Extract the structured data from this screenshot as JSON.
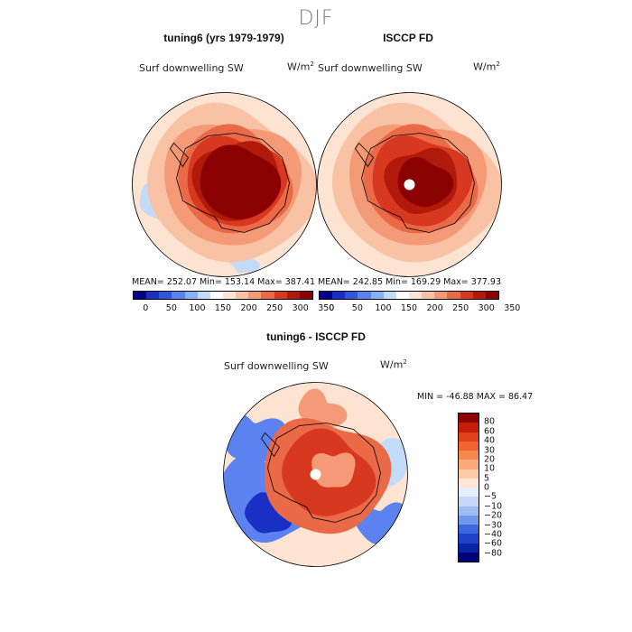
{
  "season_title": "DJF",
  "panels": [
    {
      "title": "tuning6 (yrs 1979-1979)",
      "variable": "Surf downwelling SW",
      "units_base": "W/m",
      "units_exp": "2",
      "stats": "MEAN= 252.07   Min= 153.14   Max= 387.41",
      "colorbar_ticks": [
        "0",
        "50",
        "100",
        "150",
        "200",
        "250",
        "300",
        "350"
      ],
      "colorbar_colors": [
        "#00008b",
        "#1a2fc4",
        "#3355dd",
        "#5b82ee",
        "#8ab0f6",
        "#c2dbf9",
        "#ffffff",
        "#fde3d2",
        "#f9c2a4",
        "#f59a76",
        "#ea6a48",
        "#d8381f",
        "#b11a0b",
        "#8b0000"
      ],
      "mean": 252.07,
      "min": 153.14,
      "max": 387.41
    },
    {
      "title": "ISCCP FD",
      "variable": "Surf downwelling SW",
      "units_base": "W/m",
      "units_exp": "2",
      "stats": "MEAN= 242.85   Min= 169.29   Max= 377.93",
      "colorbar_ticks": [
        "0",
        "50",
        "100",
        "150",
        "200",
        "250",
        "300",
        "350"
      ],
      "colorbar_colors": [
        "#00008b",
        "#1a2fc4",
        "#3355dd",
        "#5b82ee",
        "#8ab0f6",
        "#c2dbf9",
        "#ffffff",
        "#fde3d2",
        "#f9c2a4",
        "#f59a76",
        "#ea6a48",
        "#d8381f",
        "#b11a0b",
        "#8b0000"
      ],
      "mean": 242.85,
      "min": 169.29,
      "max": 377.93
    }
  ],
  "diff": {
    "title": "tuning6 - ISCCP FD",
    "variable": "Surf downwelling SW",
    "units_base": "W/m",
    "units_exp": "2",
    "stats": "MIN = -46.88 MAX =  86.47",
    "min": -46.88,
    "max": 86.47,
    "colorbar_ticks": [
      "80",
      "60",
      "40",
      "30",
      "20",
      "10",
      "5",
      "0",
      "−5",
      "−10",
      "−20",
      "−30",
      "−40",
      "−60",
      "−80"
    ],
    "colorbar_colors": [
      "#8b0000",
      "#c41e08",
      "#e0401a",
      "#ef6530",
      "#f5884e",
      "#f9a97a",
      "#fbcaa6",
      "#fde6d4",
      "#e6eefb",
      "#c6d8f7",
      "#9dbdf2",
      "#6e98ea",
      "#3d68dd",
      "#1f42c8",
      "#0a24a8",
      "#00007a"
    ]
  },
  "palette": {
    "ocean_pale": "#fde3d2",
    "ocean_light": "#f9c2a4",
    "mid": "#f59a76",
    "coast": "#ea6a48",
    "coast_dark": "#d8381f",
    "interior": "#b11a0b",
    "plateau": "#8b0000",
    "low_blue": "#c2dbf9",
    "blue_mid": "#5b82ee",
    "blue_strong": "#1a2fc4"
  }
}
